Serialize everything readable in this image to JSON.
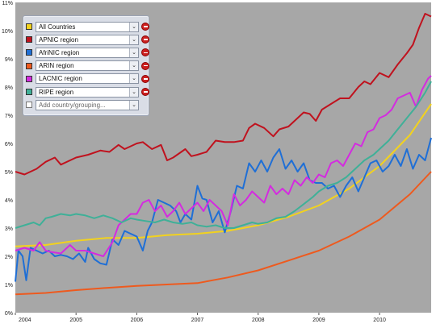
{
  "chart_data": {
    "type": "line",
    "x_ticks": [
      "2004",
      "2005",
      "2006",
      "2007",
      "2008",
      "2009",
      "2010"
    ],
    "y_ticks": [
      "0%",
      "1%",
      "2%",
      "3%",
      "4%",
      "5%",
      "6%",
      "7%",
      "8%",
      "9%",
      "10%",
      "11%"
    ],
    "xlim": [
      2004.0,
      2010.85
    ],
    "ylim": [
      0,
      11
    ],
    "y_unit": "%",
    "grid": false,
    "legend_placement": "top-left",
    "background": "#a7a7a7",
    "series": [
      {
        "name": "All Countries",
        "color": "#f2d21e",
        "points": [
          [
            2004.0,
            2.35
          ],
          [
            2004.5,
            2.4
          ],
          [
            2005.0,
            2.55
          ],
          [
            2005.5,
            2.65
          ],
          [
            2006.0,
            2.65
          ],
          [
            2006.5,
            2.75
          ],
          [
            2007.0,
            2.8
          ],
          [
            2007.5,
            2.9
          ],
          [
            2008.0,
            3.1
          ],
          [
            2008.5,
            3.4
          ],
          [
            2009.0,
            3.8
          ],
          [
            2009.5,
            4.4
          ],
          [
            2010.0,
            5.2
          ],
          [
            2010.5,
            6.3
          ],
          [
            2010.85,
            7.4
          ]
        ]
      },
      {
        "name": "APNIC region",
        "color": "#c0121e",
        "points": [
          [
            2004.0,
            5.0
          ],
          [
            2004.15,
            4.9
          ],
          [
            2004.35,
            5.1
          ],
          [
            2004.5,
            5.35
          ],
          [
            2004.65,
            5.5
          ],
          [
            2004.75,
            5.25
          ],
          [
            2005.0,
            5.5
          ],
          [
            2005.2,
            5.6
          ],
          [
            2005.4,
            5.75
          ],
          [
            2005.55,
            5.7
          ],
          [
            2005.7,
            5.95
          ],
          [
            2005.8,
            5.8
          ],
          [
            2006.0,
            6.0
          ],
          [
            2006.1,
            6.05
          ],
          [
            2006.25,
            5.8
          ],
          [
            2006.4,
            5.95
          ],
          [
            2006.5,
            5.4
          ],
          [
            2006.6,
            5.5
          ],
          [
            2006.8,
            5.8
          ],
          [
            2006.9,
            5.55
          ],
          [
            2007.0,
            5.6
          ],
          [
            2007.15,
            5.7
          ],
          [
            2007.3,
            6.1
          ],
          [
            2007.45,
            6.05
          ],
          [
            2007.6,
            6.05
          ],
          [
            2007.75,
            6.1
          ],
          [
            2007.85,
            6.55
          ],
          [
            2007.95,
            6.7
          ],
          [
            2008.1,
            6.55
          ],
          [
            2008.25,
            6.25
          ],
          [
            2008.35,
            6.5
          ],
          [
            2008.5,
            6.6
          ],
          [
            2008.65,
            6.9
          ],
          [
            2008.75,
            7.1
          ],
          [
            2008.85,
            7.05
          ],
          [
            2008.95,
            6.8
          ],
          [
            2009.05,
            7.2
          ],
          [
            2009.2,
            7.4
          ],
          [
            2009.35,
            7.6
          ],
          [
            2009.5,
            7.6
          ],
          [
            2009.65,
            8.0
          ],
          [
            2009.75,
            8.2
          ],
          [
            2009.85,
            8.1
          ],
          [
            2010.0,
            8.5
          ],
          [
            2010.15,
            8.35
          ],
          [
            2010.3,
            8.8
          ],
          [
            2010.45,
            9.2
          ],
          [
            2010.55,
            9.5
          ],
          [
            2010.65,
            10.1
          ],
          [
            2010.75,
            10.6
          ],
          [
            2010.85,
            10.5
          ]
        ]
      },
      {
        "name": "AfriNIC region",
        "color": "#1f6fd6",
        "points": [
          [
            2004.0,
            1.1
          ],
          [
            2004.05,
            2.2
          ],
          [
            2004.12,
            2.0
          ],
          [
            2004.18,
            1.15
          ],
          [
            2004.25,
            2.3
          ],
          [
            2004.35,
            2.2
          ],
          [
            2004.45,
            2.1
          ],
          [
            2004.55,
            2.2
          ],
          [
            2004.65,
            2.0
          ],
          [
            2004.75,
            2.05
          ],
          [
            2004.85,
            2.0
          ],
          [
            2004.95,
            1.9
          ],
          [
            2005.05,
            2.1
          ],
          [
            2005.15,
            1.8
          ],
          [
            2005.2,
            2.3
          ],
          [
            2005.3,
            1.9
          ],
          [
            2005.4,
            1.75
          ],
          [
            2005.5,
            1.7
          ],
          [
            2005.6,
            2.6
          ],
          [
            2005.7,
            2.4
          ],
          [
            2005.8,
            2.9
          ],
          [
            2005.9,
            2.8
          ],
          [
            2006.0,
            2.7
          ],
          [
            2006.1,
            2.2
          ],
          [
            2006.18,
            2.9
          ],
          [
            2006.25,
            3.2
          ],
          [
            2006.35,
            4.0
          ],
          [
            2006.45,
            3.9
          ],
          [
            2006.55,
            3.8
          ],
          [
            2006.65,
            3.6
          ],
          [
            2006.72,
            3.2
          ],
          [
            2006.8,
            3.5
          ],
          [
            2006.9,
            3.3
          ],
          [
            2007.0,
            4.5
          ],
          [
            2007.08,
            4.05
          ],
          [
            2007.15,
            4.0
          ],
          [
            2007.25,
            3.2
          ],
          [
            2007.35,
            3.6
          ],
          [
            2007.45,
            2.85
          ],
          [
            2007.55,
            3.6
          ],
          [
            2007.65,
            4.5
          ],
          [
            2007.75,
            4.4
          ],
          [
            2007.85,
            5.3
          ],
          [
            2007.95,
            5.0
          ],
          [
            2008.05,
            5.4
          ],
          [
            2008.15,
            5.0
          ],
          [
            2008.25,
            5.5
          ],
          [
            2008.35,
            5.8
          ],
          [
            2008.45,
            5.1
          ],
          [
            2008.55,
            5.4
          ],
          [
            2008.65,
            5.0
          ],
          [
            2008.75,
            5.3
          ],
          [
            2008.85,
            4.7
          ],
          [
            2008.95,
            4.6
          ],
          [
            2009.05,
            4.6
          ],
          [
            2009.15,
            4.4
          ],
          [
            2009.25,
            4.5
          ],
          [
            2009.35,
            4.1
          ],
          [
            2009.45,
            4.5
          ],
          [
            2009.55,
            4.8
          ],
          [
            2009.65,
            4.3
          ],
          [
            2009.75,
            4.8
          ],
          [
            2009.85,
            5.3
          ],
          [
            2009.95,
            5.4
          ],
          [
            2010.05,
            5.0
          ],
          [
            2010.15,
            5.2
          ],
          [
            2010.25,
            5.6
          ],
          [
            2010.35,
            5.2
          ],
          [
            2010.45,
            5.8
          ],
          [
            2010.55,
            5.1
          ],
          [
            2010.65,
            5.6
          ],
          [
            2010.75,
            5.4
          ],
          [
            2010.85,
            6.2
          ]
        ]
      },
      {
        "name": "ARIN region",
        "color": "#ee5a1e",
        "points": [
          [
            2004.0,
            0.65
          ],
          [
            2004.5,
            0.7
          ],
          [
            2005.0,
            0.8
          ],
          [
            2005.5,
            0.88
          ],
          [
            2006.0,
            0.95
          ],
          [
            2006.5,
            1.0
          ],
          [
            2007.0,
            1.05
          ],
          [
            2007.5,
            1.25
          ],
          [
            2008.0,
            1.5
          ],
          [
            2008.5,
            1.85
          ],
          [
            2009.0,
            2.2
          ],
          [
            2009.5,
            2.7
          ],
          [
            2010.0,
            3.3
          ],
          [
            2010.5,
            4.2
          ],
          [
            2010.85,
            5.0
          ]
        ]
      },
      {
        "name": "LACNIC region",
        "color": "#d42be0",
        "points": [
          [
            2004.0,
            2.2
          ],
          [
            2004.15,
            2.3
          ],
          [
            2004.3,
            2.2
          ],
          [
            2004.4,
            2.5
          ],
          [
            2004.5,
            2.2
          ],
          [
            2004.6,
            2.15
          ],
          [
            2004.75,
            2.1
          ],
          [
            2004.9,
            2.4
          ],
          [
            2005.0,
            2.2
          ],
          [
            2005.15,
            2.2
          ],
          [
            2005.3,
            2.1
          ],
          [
            2005.45,
            2.0
          ],
          [
            2005.6,
            2.5
          ],
          [
            2005.7,
            3.1
          ],
          [
            2005.8,
            3.3
          ],
          [
            2005.9,
            3.5
          ],
          [
            2006.0,
            3.5
          ],
          [
            2006.1,
            3.9
          ],
          [
            2006.2,
            4.0
          ],
          [
            2006.3,
            3.6
          ],
          [
            2006.4,
            3.8
          ],
          [
            2006.5,
            3.4
          ],
          [
            2006.6,
            3.6
          ],
          [
            2006.7,
            3.9
          ],
          [
            2006.8,
            3.5
          ],
          [
            2006.9,
            3.7
          ],
          [
            2007.0,
            3.9
          ],
          [
            2007.1,
            3.6
          ],
          [
            2007.2,
            4.0
          ],
          [
            2007.3,
            3.8
          ],
          [
            2007.4,
            3.6
          ],
          [
            2007.5,
            3.1
          ],
          [
            2007.6,
            4.2
          ],
          [
            2007.7,
            3.8
          ],
          [
            2007.8,
            4.0
          ],
          [
            2007.9,
            4.3
          ],
          [
            2008.0,
            4.1
          ],
          [
            2008.1,
            3.9
          ],
          [
            2008.2,
            4.5
          ],
          [
            2008.3,
            4.2
          ],
          [
            2008.4,
            4.4
          ],
          [
            2008.5,
            4.2
          ],
          [
            2008.6,
            4.7
          ],
          [
            2008.7,
            4.5
          ],
          [
            2008.8,
            4.8
          ],
          [
            2008.9,
            4.6
          ],
          [
            2009.0,
            4.9
          ],
          [
            2009.1,
            4.8
          ],
          [
            2009.2,
            5.3
          ],
          [
            2009.3,
            5.4
          ],
          [
            2009.4,
            5.2
          ],
          [
            2009.5,
            5.6
          ],
          [
            2009.6,
            6.0
          ],
          [
            2009.7,
            5.9
          ],
          [
            2009.8,
            6.4
          ],
          [
            2009.9,
            6.5
          ],
          [
            2010.0,
            6.9
          ],
          [
            2010.1,
            7.0
          ],
          [
            2010.2,
            7.2
          ],
          [
            2010.3,
            7.6
          ],
          [
            2010.4,
            7.7
          ],
          [
            2010.5,
            7.8
          ],
          [
            2010.6,
            7.3
          ],
          [
            2010.7,
            7.9
          ],
          [
            2010.8,
            8.3
          ],
          [
            2010.85,
            8.4
          ]
        ]
      },
      {
        "name": "RIPE region",
        "color": "#3fb098",
        "points": [
          [
            2004.0,
            3.0
          ],
          [
            2004.15,
            3.1
          ],
          [
            2004.3,
            3.2
          ],
          [
            2004.4,
            3.1
          ],
          [
            2004.5,
            3.35
          ],
          [
            2004.6,
            3.4
          ],
          [
            2004.75,
            3.5
          ],
          [
            2004.9,
            3.45
          ],
          [
            2005.0,
            3.5
          ],
          [
            2005.15,
            3.45
          ],
          [
            2005.3,
            3.35
          ],
          [
            2005.45,
            3.45
          ],
          [
            2005.6,
            3.35
          ],
          [
            2005.75,
            3.2
          ],
          [
            2005.9,
            3.35
          ],
          [
            2006.0,
            3.3
          ],
          [
            2006.15,
            3.25
          ],
          [
            2006.3,
            3.2
          ],
          [
            2006.45,
            3.3
          ],
          [
            2006.6,
            3.2
          ],
          [
            2006.75,
            3.15
          ],
          [
            2006.9,
            3.2
          ],
          [
            2007.0,
            3.1
          ],
          [
            2007.15,
            3.05
          ],
          [
            2007.3,
            3.1
          ],
          [
            2007.45,
            3.0
          ],
          [
            2007.6,
            3.0
          ],
          [
            2007.75,
            3.1
          ],
          [
            2007.9,
            3.2
          ],
          [
            2008.0,
            3.15
          ],
          [
            2008.15,
            3.2
          ],
          [
            2008.3,
            3.35
          ],
          [
            2008.45,
            3.4
          ],
          [
            2008.6,
            3.6
          ],
          [
            2008.75,
            3.85
          ],
          [
            2008.9,
            4.1
          ],
          [
            2009.0,
            4.3
          ],
          [
            2009.15,
            4.5
          ],
          [
            2009.3,
            4.6
          ],
          [
            2009.45,
            4.8
          ],
          [
            2009.6,
            5.1
          ],
          [
            2009.75,
            5.4
          ],
          [
            2009.9,
            5.6
          ],
          [
            2010.0,
            5.8
          ],
          [
            2010.15,
            6.1
          ],
          [
            2010.3,
            6.5
          ],
          [
            2010.45,
            6.9
          ],
          [
            2010.6,
            7.3
          ],
          [
            2010.75,
            7.8
          ],
          [
            2010.85,
            8.2
          ]
        ]
      }
    ]
  },
  "legend": {
    "add_placeholder": "Add country/grouping...",
    "select_arrow_icon": "chevron-down-icon",
    "remove_icon": "remove-icon",
    "items": [
      {
        "label": "All Countries",
        "color": "#f2d21e"
      },
      {
        "label": "APNIC region",
        "color": "#c0121e"
      },
      {
        "label": "AfriNIC region",
        "color": "#1f6fd6"
      },
      {
        "label": "ARIN region",
        "color": "#ee5a1e"
      },
      {
        "label": "LACNIC region",
        "color": "#d42be0"
      },
      {
        "label": "RIPE region",
        "color": "#3fb098"
      }
    ]
  }
}
